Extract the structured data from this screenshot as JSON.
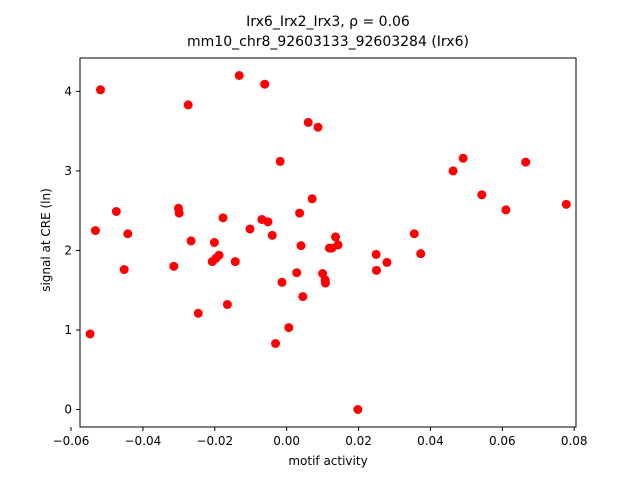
{
  "chart_data": {
    "type": "scatter",
    "title_line1": "Irx6_Irx2_Irx3, ρ = 0.06",
    "title_line2": "mm10_chr8_92603133_92603284 (Irx6)",
    "xlabel": "motif activity",
    "ylabel": "signal at CRE (ln)",
    "xlim": [
      -0.0575,
      0.0805
    ],
    "ylim": [
      -0.22,
      4.42
    ],
    "xticks": [
      -0.06,
      -0.04,
      -0.02,
      0.0,
      0.02,
      0.04,
      0.06,
      0.08
    ],
    "xtick_labels": [
      "−0.06",
      "−0.04",
      "−0.02",
      "0.00",
      "0.02",
      "0.04",
      "0.06",
      "0.08"
    ],
    "yticks": [
      0,
      1,
      2,
      3,
      4
    ],
    "ytick_labels": [
      "0",
      "1",
      "2",
      "3",
      "4"
    ],
    "grid": false,
    "marker_color": "#ff0000",
    "points": [
      {
        "x": -0.0547,
        "y": 0.95
      },
      {
        "x": -0.0532,
        "y": 2.25
      },
      {
        "x": -0.0518,
        "y": 4.02
      },
      {
        "x": -0.0474,
        "y": 2.49
      },
      {
        "x": -0.0452,
        "y": 1.76
      },
      {
        "x": -0.0442,
        "y": 2.21
      },
      {
        "x": -0.0314,
        "y": 1.8
      },
      {
        "x": -0.0301,
        "y": 2.53
      },
      {
        "x": -0.0299,
        "y": 2.47
      },
      {
        "x": -0.0274,
        "y": 3.83
      },
      {
        "x": -0.0266,
        "y": 2.12
      },
      {
        "x": -0.0246,
        "y": 1.21
      },
      {
        "x": -0.0207,
        "y": 1.86
      },
      {
        "x": -0.0201,
        "y": 2.1
      },
      {
        "x": -0.0197,
        "y": 1.9
      },
      {
        "x": -0.0188,
        "y": 1.94
      },
      {
        "x": -0.0177,
        "y": 2.41
      },
      {
        "x": -0.0165,
        "y": 1.32
      },
      {
        "x": -0.0143,
        "y": 1.86
      },
      {
        "x": -0.0132,
        "y": 4.2
      },
      {
        "x": -0.0102,
        "y": 2.27
      },
      {
        "x": -0.0069,
        "y": 2.39
      },
      {
        "x": -0.0061,
        "y": 4.09
      },
      {
        "x": -0.0052,
        "y": 2.36
      },
      {
        "x": -0.004,
        "y": 2.19
      },
      {
        "x": -0.0031,
        "y": 0.83
      },
      {
        "x": -0.0018,
        "y": 3.12
      },
      {
        "x": -0.0013,
        "y": 1.6
      },
      {
        "x": 0.0006,
        "y": 1.03
      },
      {
        "x": 0.0028,
        "y": 1.72
      },
      {
        "x": 0.0036,
        "y": 2.47
      },
      {
        "x": 0.004,
        "y": 2.06
      },
      {
        "x": 0.0045,
        "y": 1.42
      },
      {
        "x": 0.006,
        "y": 3.61
      },
      {
        "x": 0.0071,
        "y": 2.65
      },
      {
        "x": 0.0087,
        "y": 3.55
      },
      {
        "x": 0.01,
        "y": 1.71
      },
      {
        "x": 0.0107,
        "y": 1.63
      },
      {
        "x": 0.0108,
        "y": 1.59
      },
      {
        "x": 0.0119,
        "y": 2.03
      },
      {
        "x": 0.0126,
        "y": 2.03
      },
      {
        "x": 0.0136,
        "y": 2.17
      },
      {
        "x": 0.0143,
        "y": 2.07
      },
      {
        "x": 0.0198,
        "y": 0.0
      },
      {
        "x": 0.0249,
        "y": 1.95
      },
      {
        "x": 0.025,
        "y": 1.75
      },
      {
        "x": 0.0279,
        "y": 1.85
      },
      {
        "x": 0.0355,
        "y": 2.21
      },
      {
        "x": 0.0373,
        "y": 1.96
      },
      {
        "x": 0.0463,
        "y": 3.0
      },
      {
        "x": 0.0491,
        "y": 3.16
      },
      {
        "x": 0.0543,
        "y": 2.7
      },
      {
        "x": 0.061,
        "y": 2.51
      },
      {
        "x": 0.0665,
        "y": 3.11
      },
      {
        "x": 0.0778,
        "y": 2.58
      }
    ]
  }
}
